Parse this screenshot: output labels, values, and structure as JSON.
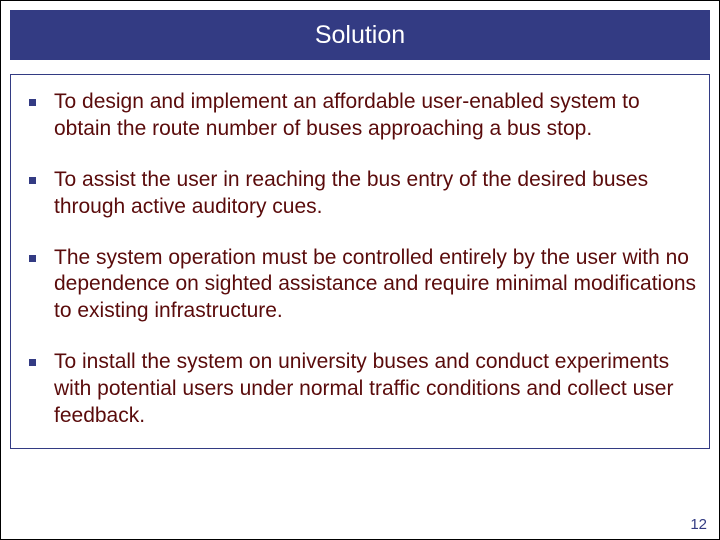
{
  "title": "Solution",
  "bullets": [
    "To design and implement an affordable user-enabled system to obtain the route number of buses approaching a bus stop.",
    "To assist the user in reaching the bus entry of the desired buses through active auditory cues.",
    "The system operation must be controlled entirely by the user with no dependence on sighted assistance and require minimal modifications to existing infrastructure.",
    "To install the system on university buses and conduct experiments with potential users under normal traffic conditions and collect user feedback."
  ],
  "page_number": "12",
  "colors": {
    "title_bg": "#333b83",
    "title_text": "#ffffff",
    "body_text": "#5a0b0b",
    "bullet_marker": "#333b83",
    "border": "#333b83",
    "page_number": "#333b83"
  },
  "fonts": {
    "title_size": 25,
    "body_size": 21,
    "page_number_size": 15
  }
}
